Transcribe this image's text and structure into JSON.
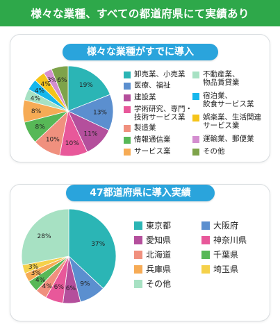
{
  "header": {
    "title": "様々な業種、すべての都道府県にて実績あり"
  },
  "charts": {
    "industry": {
      "title": "様々な業種がすでに導入"
    },
    "prefecture": {
      "title": "47都道府県に導入実績"
    }
  },
  "chart_data": [
    {
      "type": "pie",
      "title": "様々な業種がすでに導入",
      "slices": [
        {
          "label": "卸売業、小売業",
          "value": 19,
          "color": "#2bb5b5"
        },
        {
          "label": "医療、福祉",
          "value": 13,
          "color": "#5b8fcf"
        },
        {
          "label": "建設業",
          "value": 11,
          "color": "#b44f9c"
        },
        {
          "label": "学術研究、専門・\n技術サービス業",
          "value": 10,
          "color": "#e8589a"
        },
        {
          "label": "製造業",
          "value": 10,
          "color": "#f0907e"
        },
        {
          "label": "情報通信業",
          "value": 8,
          "color": "#57b857"
        },
        {
          "label": "サービス業",
          "value": 8,
          "color": "#f6ab55"
        },
        {
          "label": "不動産業、\n物品賃貸業",
          "value": 4,
          "color": "#a7e1c3"
        },
        {
          "label": "宿泊業、\n飲食サービス業",
          "value": 4,
          "color": "#17b7ec"
        },
        {
          "label": "娯楽業、生活関連\nサービス業",
          "value": 4,
          "color": "#f5c41a"
        },
        {
          "label": "運輸業、郵便業",
          "value": 3,
          "color": "#d48ed0"
        },
        {
          "label": "その他",
          "value": 6,
          "color": "#7ea34a"
        }
      ],
      "pct_labels": [
        "19%",
        "13%",
        "11%",
        "10%",
        "10%",
        "8%",
        "8%",
        "4%",
        "4%",
        "4%",
        "3%",
        "6%"
      ]
    },
    {
      "type": "pie",
      "title": "47都道府県に導入実績",
      "slices": [
        {
          "label": "東京都",
          "value": 37,
          "color": "#2bb5b5"
        },
        {
          "label": "大阪府",
          "value": 9,
          "color": "#5b8fcf"
        },
        {
          "label": "愛知県",
          "value": 6,
          "color": "#b44f9c"
        },
        {
          "label": "神奈川県",
          "value": 6,
          "color": "#e8589a"
        },
        {
          "label": "北海道",
          "value": 4,
          "color": "#f0907e"
        },
        {
          "label": "千葉県",
          "value": 4,
          "color": "#57b857"
        },
        {
          "label": "兵庫県",
          "value": 3,
          "color": "#f6ab55"
        },
        {
          "label": "埼玉県",
          "value": 3,
          "color": "#f5d14a"
        },
        {
          "label": "その他",
          "value": 28,
          "color": "#a7e1c3"
        }
      ],
      "pct_labels": [
        "37%",
        "9%",
        "6%",
        "6%",
        "4%",
        "4%",
        "3%",
        "3%",
        "28%"
      ]
    }
  ]
}
